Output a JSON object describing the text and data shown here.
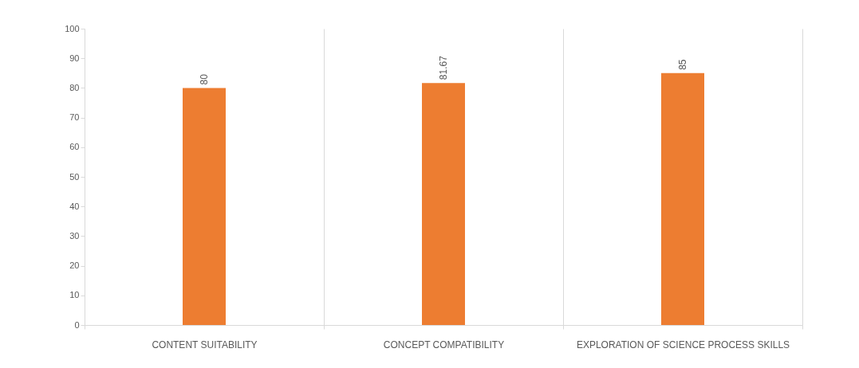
{
  "chart_data": {
    "type": "bar",
    "categories": [
      "CONTENT SUITABILITY",
      "CONCEPT COMPATIBILITY",
      "EXPLORATION OF SCIENCE PROCESS SKILLS"
    ],
    "values": [
      80,
      81.67,
      85
    ],
    "color": "#ed7d31",
    "ylim": [
      0,
      100
    ],
    "yticks": [
      0,
      10,
      20,
      30,
      40,
      50,
      60,
      70,
      80,
      90,
      100
    ],
    "grid": "x",
    "data_labels": true
  }
}
